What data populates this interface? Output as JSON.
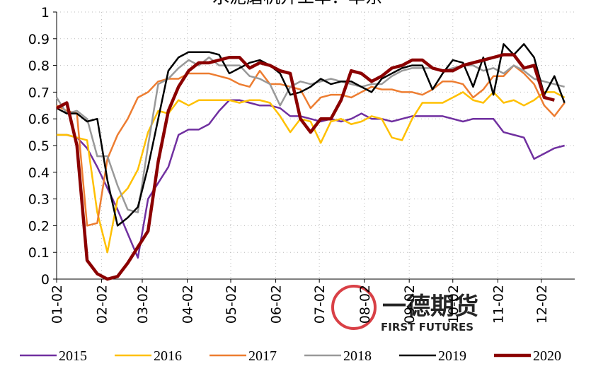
{
  "chart_data": {
    "type": "line",
    "title": "水泥磨机开工率：华东",
    "annotations": [
      "一德期货",
      "FIRST FUTURES"
    ],
    "x": [
      0,
      1,
      2,
      3,
      4,
      5,
      6,
      7,
      8,
      9,
      10,
      11,
      12,
      13,
      14,
      15,
      16,
      17,
      18,
      19,
      20,
      21,
      22,
      23,
      24,
      25,
      26,
      27,
      28,
      29,
      30,
      31,
      32,
      33,
      34,
      35,
      36,
      37,
      38,
      39,
      40,
      41,
      42,
      43,
      44,
      45,
      46,
      47,
      48,
      49,
      50
    ],
    "xlim": [
      0,
      51
    ],
    "xticks": [
      {
        "value": 0,
        "label": "01-02"
      },
      {
        "value": 4.43,
        "label": "02-02"
      },
      {
        "value": 8.43,
        "label": "03-02"
      },
      {
        "value": 12.86,
        "label": "04-02"
      },
      {
        "value": 17.14,
        "label": "05-02"
      },
      {
        "value": 21.57,
        "label": "06-02"
      },
      {
        "value": 25.86,
        "label": "07-02"
      },
      {
        "value": 30.29,
        "label": "08-02"
      },
      {
        "value": 34.71,
        "label": "09-02"
      },
      {
        "value": 39,
        "label": "10-02"
      },
      {
        "value": 43.43,
        "label": "11-02"
      },
      {
        "value": 47.71,
        "label": "12-02"
      }
    ],
    "ylim": [
      0,
      1
    ],
    "yticks": [
      0,
      0.1,
      0.2,
      0.3,
      0.4,
      0.5,
      0.6,
      0.7,
      0.8,
      0.9,
      1
    ],
    "grid": true,
    "legend": "bottom",
    "series": [
      {
        "name": "2015",
        "color": "#7030a0",
        "width": 2.5,
        "values": [
          0.54,
          0.54,
          0.53,
          0.49,
          0.42,
          0.34,
          0.26,
          0.17,
          0.08,
          0.3,
          0.36,
          0.42,
          0.54,
          0.56,
          0.56,
          0.58,
          0.63,
          0.67,
          0.67,
          0.66,
          0.65,
          0.65,
          0.64,
          0.61,
          0.61,
          0.6,
          0.59,
          0.6,
          0.59,
          0.6,
          0.62,
          0.6,
          0.6,
          0.59,
          0.6,
          0.61,
          0.61,
          0.61,
          0.61,
          0.6,
          0.59,
          0.6,
          0.6,
          0.6,
          0.55,
          0.54,
          0.53,
          0.45,
          0.47,
          0.49,
          0.5
        ]
      },
      {
        "name": "2016",
        "color": "#ffc000",
        "width": 2.5,
        "values": [
          0.54,
          0.54,
          0.53,
          0.52,
          0.25,
          0.1,
          0.3,
          0.34,
          0.41,
          0.55,
          0.63,
          0.62,
          0.67,
          0.65,
          0.67,
          0.67,
          0.67,
          0.67,
          0.66,
          0.67,
          0.67,
          0.66,
          0.61,
          0.55,
          0.6,
          0.59,
          0.51,
          0.59,
          0.6,
          0.58,
          0.59,
          0.61,
          0.6,
          0.53,
          0.52,
          0.6,
          0.66,
          0.66,
          0.66,
          0.68,
          0.7,
          0.67,
          0.66,
          0.7,
          0.66,
          0.67,
          0.65,
          0.67,
          0.7,
          0.7,
          0.68
        ]
      },
      {
        "name": "2017",
        "color": "#ed7d31",
        "width": 2.5,
        "values": [
          0.65,
          0.63,
          0.62,
          0.2,
          0.21,
          0.45,
          0.54,
          0.6,
          0.68,
          0.7,
          0.74,
          0.75,
          0.75,
          0.77,
          0.77,
          0.77,
          0.76,
          0.75,
          0.73,
          0.72,
          0.78,
          0.73,
          0.73,
          0.72,
          0.71,
          0.64,
          0.68,
          0.69,
          0.69,
          0.68,
          0.7,
          0.72,
          0.71,
          0.71,
          0.7,
          0.7,
          0.69,
          0.71,
          0.74,
          0.74,
          0.73,
          0.68,
          0.71,
          0.76,
          0.76,
          0.8,
          0.77,
          0.73,
          0.65,
          0.61,
          0.66
        ]
      },
      {
        "name": "2018",
        "color": "#999999",
        "width": 2.5,
        "values": [
          0.68,
          0.62,
          0.63,
          0.6,
          0.46,
          0.46,
          0.35,
          0.26,
          0.25,
          0.5,
          0.73,
          0.75,
          0.79,
          0.82,
          0.8,
          0.83,
          0.8,
          0.8,
          0.8,
          0.76,
          0.75,
          0.73,
          0.65,
          0.72,
          0.74,
          0.73,
          0.74,
          0.75,
          0.74,
          0.73,
          0.72,
          0.73,
          0.73,
          0.76,
          0.78,
          0.79,
          0.79,
          0.79,
          0.78,
          0.79,
          0.8,
          0.8,
          0.78,
          0.79,
          0.77,
          0.8,
          0.78,
          0.75,
          0.74,
          0.73,
          0.72
        ]
      },
      {
        "name": "2019",
        "color": "#000000",
        "width": 2.5,
        "values": [
          0.64,
          0.62,
          0.62,
          0.59,
          0.6,
          0.37,
          0.2,
          0.23,
          0.27,
          0.42,
          0.6,
          0.78,
          0.83,
          0.85,
          0.85,
          0.85,
          0.84,
          0.77,
          0.79,
          0.81,
          0.82,
          0.8,
          0.77,
          0.69,
          0.7,
          0.72,
          0.75,
          0.73,
          0.74,
          0.74,
          0.72,
          0.7,
          0.75,
          0.77,
          0.79,
          0.8,
          0.8,
          0.71,
          0.77,
          0.82,
          0.81,
          0.72,
          0.83,
          0.69,
          0.88,
          0.84,
          0.88,
          0.83,
          0.69,
          0.76,
          0.66
        ]
      },
      {
        "name": "2020",
        "color": "#8b0000",
        "width": 4.5,
        "values": [
          0.64,
          0.66,
          0.5,
          0.07,
          0.02,
          0.0,
          0.01,
          0.06,
          0.12,
          0.18,
          0.44,
          0.63,
          0.72,
          0.78,
          0.81,
          0.81,
          0.82,
          0.83,
          0.83,
          0.79,
          0.81,
          0.8,
          0.78,
          0.77,
          0.6,
          0.55,
          0.6,
          0.6,
          0.67,
          0.78,
          0.77,
          0.74,
          0.76,
          0.79,
          0.8,
          0.82,
          0.82,
          0.79,
          0.78,
          0.78,
          0.8,
          0.81,
          0.82,
          0.83,
          0.84,
          0.84,
          0.79,
          0.8,
          0.68,
          0.67,
          null
        ]
      }
    ]
  }
}
